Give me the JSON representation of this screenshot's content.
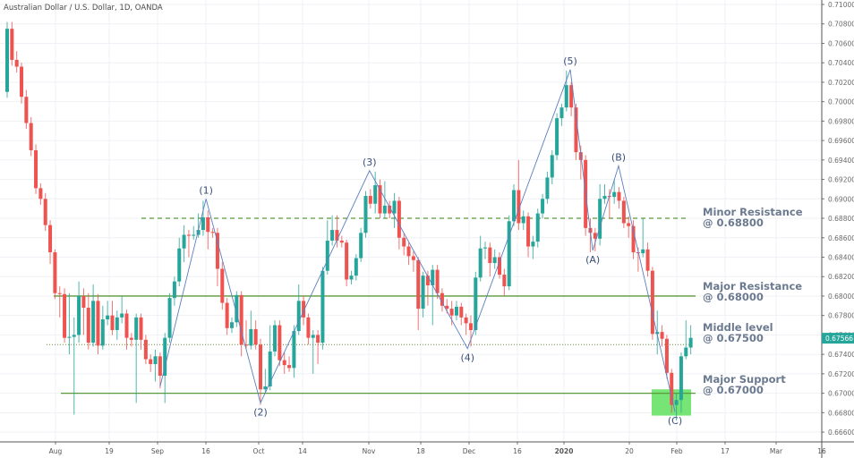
{
  "header": {
    "title": "Australian Dollar / U.S. Dollar, 1D, OANDA"
  },
  "chart_data": {
    "type": "candlestick",
    "title": "Australian Dollar / U.S. Dollar, 1D, OANDA",
    "ylim": [
      0.665,
      0.711
    ],
    "y_ticks": [
      "0.71000",
      "0.70800",
      "0.70600",
      "0.70400",
      "0.70200",
      "0.70000",
      "0.69800",
      "0.69600",
      "0.69400",
      "0.69200",
      "0.69000",
      "0.68800",
      "0.68600",
      "0.68400",
      "0.68200",
      "0.68000",
      "0.67800",
      "0.67600",
      "0.67400",
      "0.67200",
      "0.67000",
      "0.66800",
      "0.66600"
    ],
    "x_ticks": [
      "Aug",
      "19",
      "Sep",
      "16",
      "Oct",
      "14",
      "Nov",
      "18",
      "Dec",
      "16",
      "2020",
      "20",
      "Feb",
      "17",
      "Mar",
      "16"
    ],
    "grid": true,
    "colors": {
      "up": "#26a69a",
      "down": "#ef5350",
      "level_line": "#5a9a3a",
      "wave_line": "#5b7fbf",
      "support_zone": "#5ee05e",
      "annotation": "#6b7a8f"
    },
    "last_price": {
      "value": "0.67566",
      "color": "#26a69a"
    },
    "candles_ohlc": [
      [
        0.701,
        0.7082,
        0.7004,
        0.7075
      ],
      [
        0.7075,
        0.7082,
        0.7037,
        0.7043
      ],
      [
        0.7043,
        0.7052,
        0.703,
        0.7036
      ],
      [
        0.7036,
        0.704,
        0.6998,
        0.7005
      ],
      [
        0.7005,
        0.7012,
        0.6972,
        0.6978
      ],
      [
        0.6978,
        0.6984,
        0.6944,
        0.695
      ],
      [
        0.695,
        0.6956,
        0.6905,
        0.6911
      ],
      [
        0.6911,
        0.6916,
        0.6894,
        0.69
      ],
      [
        0.69,
        0.6906,
        0.6867,
        0.6873
      ],
      [
        0.6873,
        0.6878,
        0.6833,
        0.6845
      ],
      [
        0.6845,
        0.6848,
        0.6797,
        0.6803
      ],
      [
        0.6803,
        0.681,
        0.6778,
        0.6802
      ],
      [
        0.6802,
        0.6808,
        0.6752,
        0.6757
      ],
      [
        0.6757,
        0.6803,
        0.674,
        0.6758
      ],
      [
        0.6758,
        0.6778,
        0.6678,
        0.676
      ],
      [
        0.676,
        0.6815,
        0.6752,
        0.68
      ],
      [
        0.68,
        0.6808,
        0.676,
        0.6788
      ],
      [
        0.6788,
        0.6803,
        0.6745,
        0.6752
      ],
      [
        0.6752,
        0.6812,
        0.6748,
        0.6795
      ],
      [
        0.6795,
        0.6802,
        0.674,
        0.6749
      ],
      [
        0.6749,
        0.679,
        0.6745,
        0.6776
      ],
      [
        0.6776,
        0.6795,
        0.677,
        0.678
      ],
      [
        0.678,
        0.6795,
        0.676,
        0.6765
      ],
      [
        0.6765,
        0.6785,
        0.6755,
        0.6778
      ],
      [
        0.6778,
        0.68,
        0.6772,
        0.6782
      ],
      [
        0.6782,
        0.6786,
        0.6745,
        0.6757
      ],
      [
        0.6757,
        0.6762,
        0.6748,
        0.6755
      ],
      [
        0.6755,
        0.6782,
        0.669,
        0.6778
      ],
      [
        0.6778,
        0.6782,
        0.6745,
        0.6755
      ],
      [
        0.6755,
        0.676,
        0.673,
        0.6735
      ],
      [
        0.6735,
        0.674,
        0.6722,
        0.673
      ],
      [
        0.673,
        0.6745,
        0.6712,
        0.6738
      ],
      [
        0.6738,
        0.6742,
        0.6705,
        0.6718
      ],
      [
        0.6718,
        0.6762,
        0.669,
        0.6757
      ],
      [
        0.6757,
        0.6803,
        0.6752,
        0.6798
      ],
      [
        0.6798,
        0.682,
        0.679,
        0.6815
      ],
      [
        0.6815,
        0.686,
        0.681,
        0.6849
      ],
      [
        0.6849,
        0.6873,
        0.6835,
        0.6863
      ],
      [
        0.6863,
        0.6868,
        0.684,
        0.6862
      ],
      [
        0.6862,
        0.6872,
        0.6858,
        0.6863
      ],
      [
        0.6863,
        0.6885,
        0.686,
        0.6868
      ],
      [
        0.6868,
        0.6898,
        0.6862,
        0.6881
      ],
      [
        0.6881,
        0.6888,
        0.6848,
        0.6866
      ],
      [
        0.6866,
        0.687,
        0.686,
        0.6865
      ],
      [
        0.6865,
        0.687,
        0.681,
        0.6828
      ],
      [
        0.6828,
        0.6835,
        0.6786,
        0.6793
      ],
      [
        0.6793,
        0.6798,
        0.676,
        0.6767
      ],
      [
        0.6767,
        0.6778,
        0.6762,
        0.6773
      ],
      [
        0.6773,
        0.6805,
        0.6768,
        0.6801
      ],
      [
        0.6801,
        0.6805,
        0.6738,
        0.675
      ],
      [
        0.675,
        0.6775,
        0.6745,
        0.6749
      ],
      [
        0.6749,
        0.6785,
        0.6745,
        0.6766
      ],
      [
        0.6766,
        0.6775,
        0.6745,
        0.675
      ],
      [
        0.675,
        0.6756,
        0.6688,
        0.6704
      ],
      [
        0.6704,
        0.6725,
        0.67,
        0.6707
      ],
      [
        0.6707,
        0.677,
        0.6703,
        0.6743
      ],
      [
        0.6743,
        0.6775,
        0.6738,
        0.677
      ],
      [
        0.677,
        0.6775,
        0.6728,
        0.6734
      ],
      [
        0.6734,
        0.6742,
        0.672,
        0.6729
      ],
      [
        0.6729,
        0.6738,
        0.6722,
        0.6726
      ],
      [
        0.6726,
        0.677,
        0.6716,
        0.6764
      ],
      [
        0.6764,
        0.6812,
        0.676,
        0.6795
      ],
      [
        0.6795,
        0.68,
        0.677,
        0.6778
      ],
      [
        0.6778,
        0.6782,
        0.675,
        0.6757
      ],
      [
        0.6757,
        0.6765,
        0.672,
        0.676
      ],
      [
        0.676,
        0.6765,
        0.673,
        0.6752
      ],
      [
        0.6752,
        0.683,
        0.6745,
        0.6826
      ],
      [
        0.6826,
        0.6878,
        0.6822,
        0.6857
      ],
      [
        0.6857,
        0.6883,
        0.6852,
        0.6868
      ],
      [
        0.6868,
        0.6883,
        0.685,
        0.6857
      ],
      [
        0.6857,
        0.6862,
        0.685,
        0.6855
      ],
      [
        0.6855,
        0.6858,
        0.681,
        0.6817
      ],
      [
        0.6817,
        0.6826,
        0.6812,
        0.6821
      ],
      [
        0.6821,
        0.6843,
        0.6816,
        0.6839
      ],
      [
        0.6839,
        0.687,
        0.6835,
        0.6865
      ],
      [
        0.6865,
        0.6908,
        0.686,
        0.6903
      ],
      [
        0.6903,
        0.691,
        0.689,
        0.6895
      ],
      [
        0.6895,
        0.6928,
        0.6885,
        0.6914
      ],
      [
        0.6914,
        0.692,
        0.688,
        0.6885
      ],
      [
        0.6885,
        0.6918,
        0.688,
        0.6893
      ],
      [
        0.6893,
        0.6898,
        0.688,
        0.6885
      ],
      [
        0.6885,
        0.6906,
        0.687,
        0.6898
      ],
      [
        0.6898,
        0.6902,
        0.6848,
        0.686
      ],
      [
        0.686,
        0.6865,
        0.6842,
        0.6851
      ],
      [
        0.6851,
        0.6855,
        0.6832,
        0.6841
      ],
      [
        0.6841,
        0.6846,
        0.6825,
        0.6837
      ],
      [
        0.6837,
        0.684,
        0.6765,
        0.6787
      ],
      [
        0.6787,
        0.6825,
        0.6778,
        0.6821
      ],
      [
        0.6821,
        0.6826,
        0.679,
        0.6811
      ],
      [
        0.6811,
        0.6832,
        0.677,
        0.6827
      ],
      [
        0.6827,
        0.6832,
        0.6797,
        0.6803
      ],
      [
        0.6803,
        0.6808,
        0.6784,
        0.679
      ],
      [
        0.679,
        0.6797,
        0.6782,
        0.6787
      ],
      [
        0.6787,
        0.6795,
        0.677,
        0.678
      ],
      [
        0.678,
        0.6795,
        0.6775,
        0.6789
      ],
      [
        0.6789,
        0.6793,
        0.677,
        0.6778
      ],
      [
        0.6778,
        0.6782,
        0.676,
        0.6772
      ],
      [
        0.6772,
        0.678,
        0.6748,
        0.6765
      ],
      [
        0.6765,
        0.6825,
        0.676,
        0.6819
      ],
      [
        0.6819,
        0.6862,
        0.6815,
        0.6849
      ],
      [
        0.6849,
        0.6856,
        0.6838,
        0.685
      ],
      [
        0.685,
        0.6855,
        0.682,
        0.6834
      ],
      [
        0.6834,
        0.6848,
        0.6828,
        0.684
      ],
      [
        0.684,
        0.6845,
        0.6818,
        0.6822
      ],
      [
        0.6822,
        0.6828,
        0.68,
        0.681
      ],
      [
        0.681,
        0.6883,
        0.6806,
        0.6877
      ],
      [
        0.6877,
        0.6915,
        0.6872,
        0.6909
      ],
      [
        0.6909,
        0.694,
        0.6868,
        0.6875
      ],
      [
        0.6875,
        0.6888,
        0.6868,
        0.6882
      ],
      [
        0.6882,
        0.6886,
        0.684,
        0.6851
      ],
      [
        0.6851,
        0.6862,
        0.6838,
        0.6856
      ],
      [
        0.6856,
        0.689,
        0.685,
        0.6885
      ],
      [
        0.6885,
        0.6905,
        0.688,
        0.69
      ],
      [
        0.69,
        0.6928,
        0.6895,
        0.6922
      ],
      [
        0.6922,
        0.695,
        0.6915,
        0.6945
      ],
      [
        0.6945,
        0.6988,
        0.694,
        0.6983
      ],
      [
        0.6983,
        0.6998,
        0.6975,
        0.6994
      ],
      [
        0.6994,
        0.7032,
        0.699,
        0.7017
      ],
      [
        0.7017,
        0.702,
        0.6985,
        0.6994
      ],
      [
        0.6994,
        0.6998,
        0.694,
        0.6948
      ],
      [
        0.6948,
        0.6955,
        0.692,
        0.694
      ],
      [
        0.694,
        0.6945,
        0.6862,
        0.687
      ],
      [
        0.687,
        0.688,
        0.6845,
        0.6865
      ],
      [
        0.6865,
        0.687,
        0.6846,
        0.6859
      ],
      [
        0.6859,
        0.6915,
        0.6852,
        0.69
      ],
      [
        0.69,
        0.6915,
        0.6895,
        0.6903
      ],
      [
        0.6903,
        0.691,
        0.688,
        0.6902
      ],
      [
        0.6902,
        0.692,
        0.6895,
        0.6907
      ],
      [
        0.6907,
        0.6912,
        0.689,
        0.6898
      ],
      [
        0.6898,
        0.6902,
        0.687,
        0.6875
      ],
      [
        0.6875,
        0.6882,
        0.686,
        0.6872
      ],
      [
        0.6872,
        0.6878,
        0.6838,
        0.6845
      ],
      [
        0.6845,
        0.685,
        0.6825,
        0.6844
      ],
      [
        0.6844,
        0.688,
        0.684,
        0.6848
      ],
      [
        0.6848,
        0.6855,
        0.682,
        0.6826
      ],
      [
        0.6826,
        0.683,
        0.6755,
        0.6761
      ],
      [
        0.6761,
        0.6785,
        0.674,
        0.6763
      ],
      [
        0.6763,
        0.677,
        0.6748,
        0.6756
      ],
      [
        0.6756,
        0.676,
        0.6715,
        0.6721
      ],
      [
        0.6721,
        0.6725,
        0.668,
        0.6688
      ],
      [
        0.6688,
        0.67,
        0.6672,
        0.6693
      ],
      [
        0.6693,
        0.6742,
        0.668,
        0.6738
      ],
      [
        0.6738,
        0.6775,
        0.6735,
        0.6747
      ],
      [
        0.6747,
        0.677,
        0.674,
        0.6757
      ]
    ],
    "levels": [
      {
        "name": "Minor Resistance",
        "label": "@ 0.68800",
        "value": 0.688,
        "style": "dashed"
      },
      {
        "name": "Major Resistance",
        "label": "@ 0.68000",
        "value": 0.68,
        "style": "solid"
      },
      {
        "name": "Middle level",
        "label": "@ 0.67500",
        "value": 0.675,
        "style": "dotted"
      },
      {
        "name": "Major Support",
        "label": "@ 0.67000",
        "value": 0.67,
        "style": "solid"
      }
    ],
    "support_zone": {
      "from": 0.6677,
      "to": 0.6704
    },
    "waves": [
      {
        "label": "",
        "candle": 33,
        "price": 0.6707
      },
      {
        "label": "(1)",
        "candle": 42.6,
        "price": 0.69
      },
      {
        "label": "(2)",
        "candle": 54,
        "price": 0.669
      },
      {
        "label": "(3)",
        "candle": 76.8,
        "price": 0.6929
      },
      {
        "label": "(4)",
        "candle": 97.3,
        "price": 0.6746
      },
      {
        "label": "(5)",
        "candle": 118.8,
        "price": 0.7033
      },
      {
        "label": "(A)",
        "candle": 123.5,
        "price": 0.6847
      },
      {
        "label": "(B)",
        "candle": 128.9,
        "price": 0.6934
      },
      {
        "label": "(C)",
        "candle": 140.7,
        "price": 0.6681
      }
    ]
  }
}
